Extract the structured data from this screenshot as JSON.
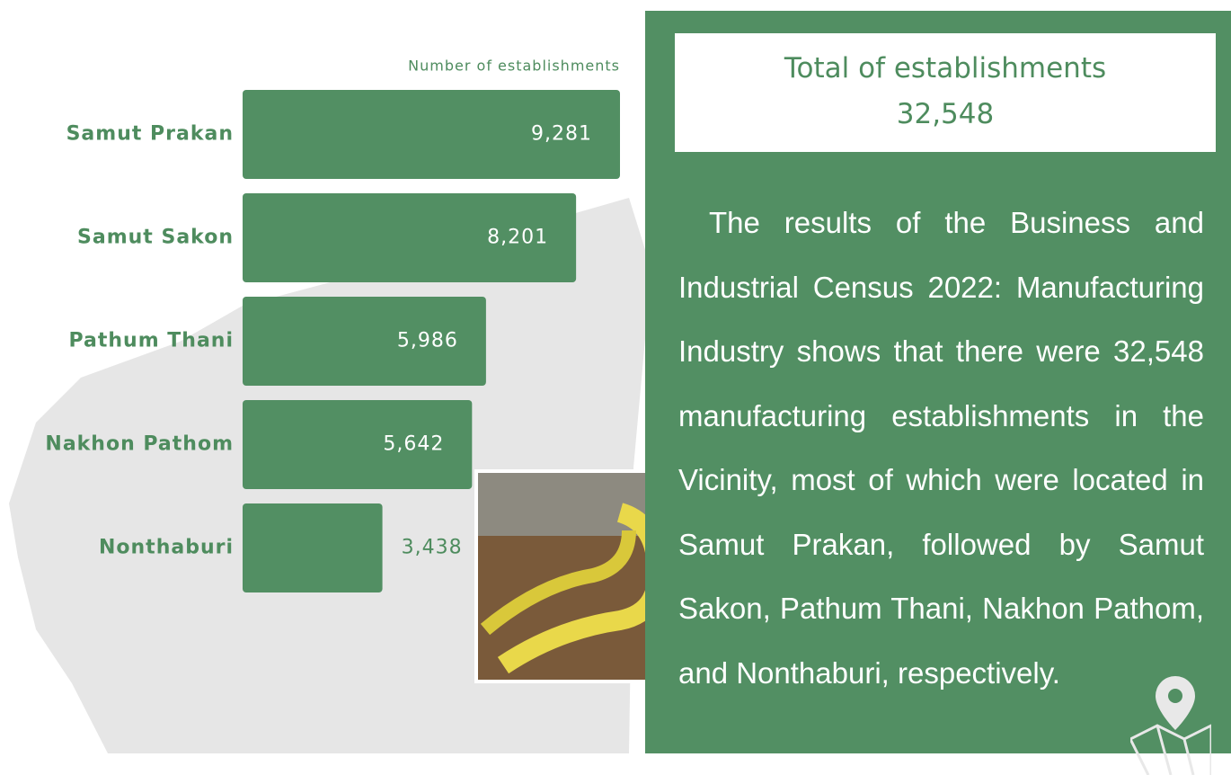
{
  "chart_data": {
    "type": "bar",
    "orientation": "horizontal",
    "x_label": "Number of establishments",
    "categories": [
      "Samut Prakan",
      "Samut Sakon",
      "Pathum Thani",
      "Nakhon Pathom",
      "Nonthaburi"
    ],
    "values": [
      9281,
      8201,
      5986,
      5642,
      3438
    ],
    "value_labels": [
      "9,281",
      "8,201",
      "5,986",
      "5,642",
      "3,438"
    ],
    "color": "#528f63"
  },
  "summary": {
    "title": "Total of establishments",
    "total": "32,548",
    "description": "The results of the Business and Industrial Census 2022: Manufacturing Industry shows that there were 32,548 manufacturing establishments in the Vicinity, most of which were located in Samut Prakan, followed by Samut Sakon, Pathum Thani, Nakhon Pathom, and Nonthaburi, respectively."
  }
}
